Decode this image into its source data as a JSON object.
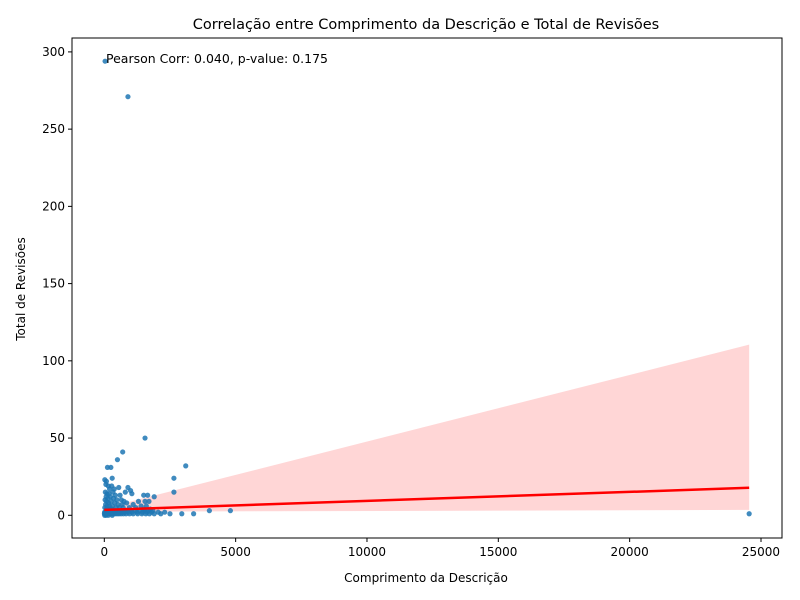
{
  "chart_data": {
    "type": "scatter",
    "title": "Correlação entre Comprimento da Descrição e Total de Revisões",
    "xlabel": "Comprimento da Descrição",
    "ylabel": "Total de Revisões",
    "xlim": [
      -1230,
      25800
    ],
    "ylim": [
      -14.7,
      309
    ],
    "xticks": [
      0,
      5000,
      10000,
      15000,
      20000,
      25000
    ],
    "yticks": [
      0,
      50,
      100,
      150,
      200,
      250,
      300
    ],
    "xtick_labels": [
      "0",
      "5000",
      "10000",
      "15000",
      "20000",
      "25000"
    ],
    "ytick_labels": [
      "0",
      "50",
      "100",
      "150",
      "200",
      "250",
      "300"
    ],
    "grid": false,
    "annotation": "Pearson Corr: 0.040, p-value: 0.175",
    "colors": {
      "points": "#1f77b4",
      "regression_line": "#ff0000",
      "confidence_band": "#ffcccc"
    },
    "regression": {
      "x": [
        0,
        24550
      ],
      "y": [
        3.5,
        17.8
      ]
    },
    "confidence_band": {
      "x": [
        0,
        24550
      ],
      "lower": [
        2.3,
        3.5
      ],
      "upper": [
        4.6,
        110.5
      ]
    },
    "points": [
      [
        30,
        294
      ],
      [
        900,
        271
      ],
      [
        1550,
        50
      ],
      [
        700,
        41
      ],
      [
        500,
        36
      ],
      [
        3100,
        32
      ],
      [
        120,
        31
      ],
      [
        250,
        31
      ],
      [
        2650,
        24
      ],
      [
        20,
        23
      ],
      [
        300,
        24
      ],
      [
        80,
        22
      ],
      [
        60,
        20
      ],
      [
        150,
        19
      ],
      [
        280,
        19
      ],
      [
        900,
        18
      ],
      [
        550,
        18
      ],
      [
        1000,
        16
      ],
      [
        200,
        17
      ],
      [
        380,
        17
      ],
      [
        800,
        15
      ],
      [
        2650,
        15
      ],
      [
        1500,
        13
      ],
      [
        1650,
        13
      ],
      [
        40,
        15
      ],
      [
        100,
        14
      ],
      [
        180,
        14
      ],
      [
        330,
        15
      ],
      [
        420,
        13
      ],
      [
        600,
        13
      ],
      [
        1900,
        12
      ],
      [
        1050,
        14
      ],
      [
        70,
        12
      ],
      [
        140,
        11
      ],
      [
        230,
        12
      ],
      [
        350,
        11
      ],
      [
        480,
        10
      ],
      [
        650,
        10
      ],
      [
        750,
        9
      ],
      [
        1300,
        9
      ],
      [
        1550,
        9
      ],
      [
        1700,
        9
      ],
      [
        30,
        10
      ],
      [
        90,
        9
      ],
      [
        160,
        8
      ],
      [
        260,
        9
      ],
      [
        400,
        8
      ],
      [
        520,
        7
      ],
      [
        680,
        7
      ],
      [
        850,
        8
      ],
      [
        1100,
        7
      ],
      [
        1400,
        6
      ],
      [
        1600,
        6
      ],
      [
        50,
        7
      ],
      [
        110,
        6
      ],
      [
        190,
        6
      ],
      [
        310,
        6
      ],
      [
        450,
        5
      ],
      [
        580,
        5
      ],
      [
        720,
        5
      ],
      [
        950,
        5
      ],
      [
        1200,
        5
      ],
      [
        1500,
        4
      ],
      [
        1750,
        4
      ],
      [
        20,
        5
      ],
      [
        75,
        4
      ],
      [
        130,
        4
      ],
      [
        210,
        4
      ],
      [
        290,
        4
      ],
      [
        370,
        3
      ],
      [
        440,
        3
      ],
      [
        540,
        3
      ],
      [
        640,
        3
      ],
      [
        780,
        3
      ],
      [
        880,
        3
      ],
      [
        1020,
        3
      ],
      [
        1180,
        3
      ],
      [
        1350,
        3
      ],
      [
        1520,
        3
      ],
      [
        1680,
        3
      ],
      [
        1850,
        3
      ],
      [
        2050,
        2
      ],
      [
        2300,
        2
      ],
      [
        4000,
        3
      ],
      [
        4800,
        3
      ],
      [
        10,
        2
      ],
      [
        40,
        2
      ],
      [
        85,
        2
      ],
      [
        120,
        2
      ],
      [
        170,
        2
      ],
      [
        220,
        2
      ],
      [
        270,
        2
      ],
      [
        330,
        2
      ],
      [
        390,
        2
      ],
      [
        460,
        2
      ],
      [
        530,
        2
      ],
      [
        610,
        2
      ],
      [
        700,
        2
      ],
      [
        800,
        2
      ],
      [
        920,
        2
      ],
      [
        1060,
        2
      ],
      [
        1250,
        2
      ],
      [
        1450,
        2
      ],
      [
        1620,
        2
      ],
      [
        1800,
        2
      ],
      [
        5,
        1
      ],
      [
        25,
        1
      ],
      [
        55,
        1
      ],
      [
        95,
        1
      ],
      [
        140,
        1
      ],
      [
        195,
        1
      ],
      [
        245,
        1
      ],
      [
        305,
        1
      ],
      [
        360,
        1
      ],
      [
        420,
        1
      ],
      [
        490,
        1
      ],
      [
        560,
        1
      ],
      [
        640,
        1
      ],
      [
        730,
        1
      ],
      [
        830,
        1
      ],
      [
        960,
        1
      ],
      [
        1100,
        1
      ],
      [
        1270,
        1
      ],
      [
        1430,
        1
      ],
      [
        1580,
        1
      ],
      [
        1720,
        1
      ],
      [
        1900,
        1
      ],
      [
        2150,
        1
      ],
      [
        2500,
        1
      ],
      [
        2950,
        1
      ],
      [
        3400,
        1
      ],
      [
        24550,
        1
      ],
      [
        15,
        0
      ],
      [
        65,
        0
      ],
      [
        150,
        0
      ],
      [
        300,
        0
      ]
    ]
  }
}
